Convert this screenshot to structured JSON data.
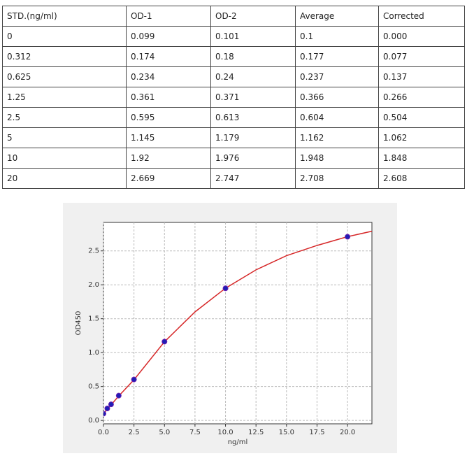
{
  "table": {
    "header": [
      "STD.(ng/ml)",
      "OD-1",
      "OD-2",
      "Average",
      "Corrected"
    ],
    "rows": [
      [
        "0",
        "0.099",
        "0.101",
        "0.1",
        "0.000"
      ],
      [
        "0.312",
        "0.174",
        "0.18",
        "0.177",
        "0.077"
      ],
      [
        "0.625",
        "0.234",
        "0.24",
        "0.237",
        "0.137"
      ],
      [
        "1.25",
        "0.361",
        "0.371",
        "0.366",
        "0.266"
      ],
      [
        "2.5",
        "0.595",
        "0.613",
        "0.604",
        "0.504"
      ],
      [
        "5",
        "1.145",
        "1.179",
        "1.162",
        "1.062"
      ],
      [
        "10",
        "1.92",
        "1.976",
        "1.948",
        "1.848"
      ],
      [
        "20",
        "2.669",
        "2.747",
        "2.708",
        "2.608"
      ]
    ]
  },
  "chart_data": {
    "type": "scatter",
    "xlabel": "ng/ml",
    "ylabel": "OD450",
    "x": [
      0,
      0.312,
      0.625,
      1.25,
      2.5,
      5,
      10,
      20
    ],
    "values": [
      0.1,
      0.177,
      0.237,
      0.366,
      0.604,
      1.162,
      1.948,
      2.708
    ],
    "color": "#1f1fb4",
    "curve": {
      "color": "#d62728",
      "x": [
        0,
        1.25,
        2.5,
        5,
        7.5,
        10,
        12.5,
        15,
        17.5,
        20,
        22
      ],
      "values": [
        0.1,
        0.36,
        0.6,
        1.16,
        1.6,
        1.95,
        2.22,
        2.43,
        2.58,
        2.71,
        2.79
      ]
    },
    "xlim": [
      0,
      22
    ],
    "ylim": [
      -0.05,
      2.92
    ],
    "xticks": [
      {
        "value": 0,
        "label": "0.0"
      },
      {
        "value": 2.5,
        "label": "2.5"
      },
      {
        "value": 5,
        "label": "5.0"
      },
      {
        "value": 7.5,
        "label": "7.5"
      },
      {
        "value": 10,
        "label": "10.0"
      },
      {
        "value": 12.5,
        "label": "12.5"
      },
      {
        "value": 15,
        "label": "15.0"
      },
      {
        "value": 17.5,
        "label": "17.5"
      },
      {
        "value": 20,
        "label": "20.0"
      }
    ],
    "yticks": [
      {
        "value": 0,
        "label": "0.0"
      },
      {
        "value": 0.5,
        "label": "0.5"
      },
      {
        "value": 1,
        "label": "1.0"
      },
      {
        "value": 1.5,
        "label": "1.5"
      },
      {
        "value": 2,
        "label": "2.0"
      },
      {
        "value": 2.5,
        "label": "2.5"
      }
    ],
    "grid": true
  }
}
